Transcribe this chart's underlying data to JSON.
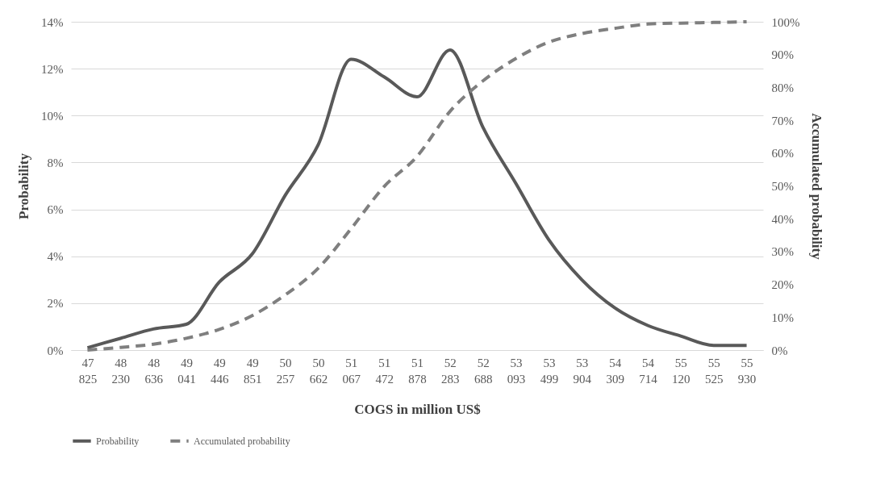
{
  "chart_data": {
    "type": "line",
    "xlabel": "COGS in million US$",
    "ylabel": "Probability",
    "y2label": "Accumulated probability",
    "categories": [
      "47 825",
      "48 230",
      "48 636",
      "49 041",
      "49 446",
      "49 851",
      "50 257",
      "50 662",
      "51 067",
      "51 472",
      "51 878",
      "52 283",
      "52 688",
      "53 093",
      "53 499",
      "53 904",
      "54 309",
      "54 714",
      "55 120",
      "55 525",
      "55 930"
    ],
    "series": [
      {
        "name": "Probability",
        "color": "#595959",
        "line_style": "solid",
        "values": [
          0.1,
          0.5,
          0.9,
          1.1,
          2.9,
          4.1,
          6.6,
          8.75,
          12.4,
          11.65,
          10.8,
          12.8,
          9.5,
          7.1,
          4.7,
          3.0,
          1.8,
          1.05,
          0.6,
          0.2,
          0.2
        ]
      },
      {
        "name": "Accumulated probability",
        "color": "#7f7f7f",
        "line_style": "dashed",
        "axis": "y2",
        "values": [
          0,
          0.8,
          1.8,
          3.6,
          6.3,
          10.5,
          16.8,
          24.9,
          37,
          49.8,
          59,
          72.7,
          82,
          88.8,
          93.8,
          96.4,
          98,
          99.3,
          99.6,
          99.8,
          100
        ]
      }
    ],
    "ylim": [
      0,
      14
    ],
    "yticks": [
      {
        "value": 0,
        "label": "0%"
      },
      {
        "value": 2,
        "label": "2%"
      },
      {
        "value": 4,
        "label": "4%"
      },
      {
        "value": 6,
        "label": "6%"
      },
      {
        "value": 8,
        "label": "8%"
      },
      {
        "value": 10,
        "label": "10%"
      },
      {
        "value": 12,
        "label": "12%"
      },
      {
        "value": 14,
        "label": "14%"
      }
    ],
    "y2lim": [
      0,
      100
    ],
    "y2ticks": [
      {
        "value": 0,
        "label": "0%"
      },
      {
        "value": 10,
        "label": "10%"
      },
      {
        "value": 20,
        "label": "20%"
      },
      {
        "value": 30,
        "label": "30%"
      },
      {
        "value": 40,
        "label": "40%"
      },
      {
        "value": 50,
        "label": "50%"
      },
      {
        "value": 60,
        "label": "60%"
      },
      {
        "value": 70,
        "label": "70%"
      },
      {
        "value": 80,
        "label": "80%"
      },
      {
        "value": 90,
        "label": "90%"
      },
      {
        "value": 100,
        "label": "100%"
      }
    ],
    "grid": "y",
    "legend": "bottom",
    "marker": "none"
  }
}
